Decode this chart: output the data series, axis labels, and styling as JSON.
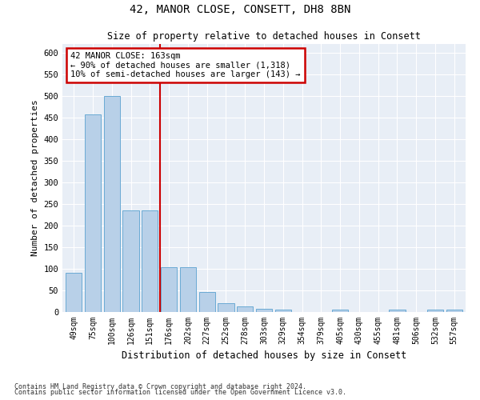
{
  "title": "42, MANOR CLOSE, CONSETT, DH8 8BN",
  "subtitle": "Size of property relative to detached houses in Consett",
  "xlabel": "Distribution of detached houses by size in Consett",
  "ylabel": "Number of detached properties",
  "categories": [
    "49sqm",
    "75sqm",
    "100sqm",
    "126sqm",
    "151sqm",
    "176sqm",
    "202sqm",
    "227sqm",
    "252sqm",
    "278sqm",
    "303sqm",
    "329sqm",
    "354sqm",
    "379sqm",
    "405sqm",
    "430sqm",
    "455sqm",
    "481sqm",
    "506sqm",
    "532sqm",
    "557sqm"
  ],
  "values": [
    90,
    457,
    500,
    235,
    235,
    103,
    103,
    47,
    20,
    13,
    8,
    5,
    0,
    0,
    5,
    0,
    0,
    5,
    0,
    5,
    5
  ],
  "bar_color": "#b8d0e8",
  "bar_edge_color": "#6aaad4",
  "background_color": "#e8eef6",
  "ylim": [
    0,
    620
  ],
  "yticks": [
    0,
    50,
    100,
    150,
    200,
    250,
    300,
    350,
    400,
    450,
    500,
    550,
    600
  ],
  "property_line_x": 4.55,
  "property_line_color": "#cc0000",
  "annotation_text": "42 MANOR CLOSE: 163sqm\n← 90% of detached houses are smaller (1,318)\n10% of semi-detached houses are larger (143) →",
  "annotation_box_color": "#cc0000",
  "footer_line1": "Contains HM Land Registry data © Crown copyright and database right 2024.",
  "footer_line2": "Contains public sector information licensed under the Open Government Licence v3.0."
}
